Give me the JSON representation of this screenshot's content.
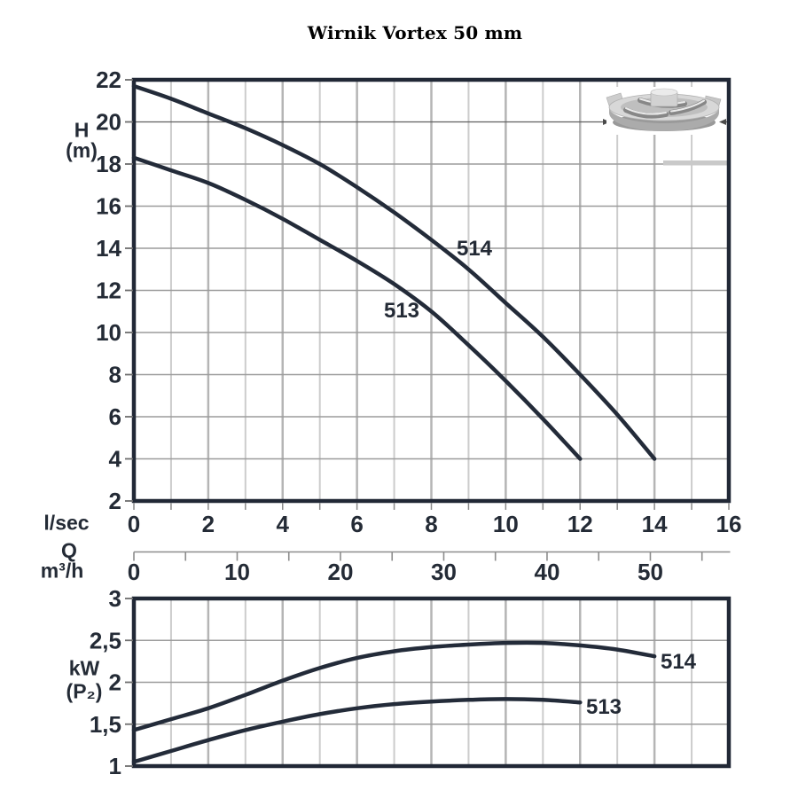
{
  "title": "Wirnik Vortex 50 mm",
  "labels": {
    "y_upper_line1": "H",
    "y_upper_line2": "(m)",
    "x_primary_unit": "l/sec",
    "x_symbol": "Q",
    "x_secondary_unit": "m³/h",
    "y_lower_line1": "kW",
    "y_lower_line2": "(P₂)",
    "series_514": "514",
    "series_513": "513"
  },
  "colors": {
    "curve": "#232b39",
    "frame": "#212836",
    "text": "#242b36",
    "grid_vertical_minor": "#cccccc",
    "grid_vertical_major": "#b5b5b5",
    "grid_horizontal": "#9b9b9b",
    "ruler": "#8d8d8d",
    "tick": "#6e6e6e",
    "impeller_gray": "#c0c0c0",
    "stripe": "#c9c9c9"
  },
  "chart_data": [
    {
      "type": "line",
      "name": "head_vs_flow",
      "title": "Pump head curves",
      "xlabel": "Q (l/sec top scale, m³/h bottom scale)",
      "ylabel": "H (m)",
      "xlim": [
        0,
        16
      ],
      "ylim": [
        2,
        22
      ],
      "grid": "on",
      "legend": "inline",
      "yticks": [
        22,
        20,
        18,
        16,
        14,
        12,
        10,
        8,
        6,
        4,
        2
      ],
      "xticks_lsec": [
        0,
        2,
        4,
        6,
        8,
        10,
        12,
        14,
        16
      ],
      "xticks_m3h": [
        0,
        10,
        20,
        30,
        40,
        50
      ],
      "m3h_per_lsec": 3.6,
      "m3h_minor_step": 5,
      "m3h_last_minor_tick": 55,
      "series": [
        {
          "name": "514",
          "x": [
            0,
            1,
            2,
            3,
            4,
            5,
            6,
            7,
            8,
            9,
            10,
            11,
            12,
            13,
            14
          ],
          "y": [
            21.7,
            21.1,
            20.4,
            19.7,
            18.9,
            18.0,
            16.9,
            15.7,
            14.4,
            13.0,
            11.4,
            9.8,
            8.0,
            6.1,
            4.0
          ]
        },
        {
          "name": "513",
          "x": [
            0,
            1,
            2,
            3,
            4,
            5,
            6,
            7,
            8,
            9,
            10,
            11,
            12
          ],
          "y": [
            18.3,
            17.7,
            17.1,
            16.3,
            15.4,
            14.4,
            13.4,
            12.3,
            11.0,
            9.4,
            7.7,
            5.9,
            4.0
          ]
        }
      ]
    },
    {
      "type": "line",
      "name": "power_vs_flow",
      "title": "Shaft power curves",
      "xlabel": "Q (shared scale with upper chart)",
      "ylabel": "kW (P₂)",
      "xlim": [
        0,
        16
      ],
      "ylim": [
        1,
        3
      ],
      "grid": "on",
      "legend": "inline",
      "ytick_values": [
        3,
        2.5,
        2,
        1.5,
        1
      ],
      "ytick_labels": [
        "3",
        "2,5",
        "2",
        "1,5",
        "1"
      ],
      "series": [
        {
          "name": "514",
          "x": [
            0,
            1,
            2,
            3,
            4,
            5,
            6,
            7,
            8,
            9,
            10,
            11,
            12,
            13,
            14
          ],
          "y": [
            1.43,
            1.56,
            1.69,
            1.85,
            2.02,
            2.17,
            2.29,
            2.37,
            2.42,
            2.45,
            2.47,
            2.47,
            2.44,
            2.39,
            2.31
          ]
        },
        {
          "name": "513",
          "x": [
            0,
            1,
            2,
            3,
            4,
            5,
            6,
            7,
            8,
            9,
            10,
            11,
            12
          ],
          "y": [
            1.05,
            1.18,
            1.31,
            1.43,
            1.53,
            1.62,
            1.69,
            1.74,
            1.77,
            1.79,
            1.8,
            1.79,
            1.76
          ]
        }
      ]
    }
  ]
}
